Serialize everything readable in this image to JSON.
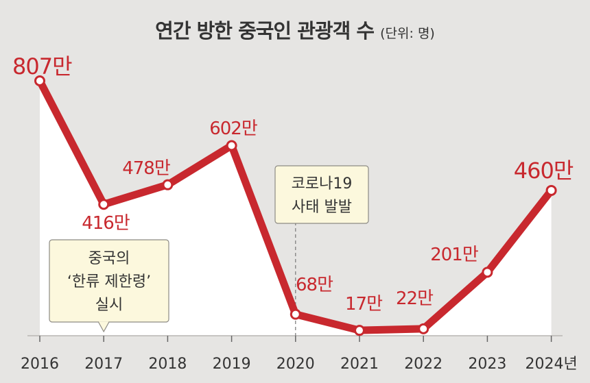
{
  "title": "연간 방한 중국인 관광객 수",
  "unit": "(단위: 명)",
  "chart_data": {
    "type": "line",
    "title": "연간 방한 중국인 관광객 수",
    "unit": "(단위: 명)",
    "xlabel": "",
    "ylabel": "",
    "categories": [
      "2016",
      "2017",
      "2018",
      "2019",
      "2020",
      "2021",
      "2022",
      "2023",
      "2024년"
    ],
    "values": [
      807,
      416,
      478,
      602,
      68,
      17,
      22,
      201,
      460
    ],
    "value_labels": [
      "807만",
      "416만",
      "478만",
      "602만",
      "68만",
      "17만",
      "22만",
      "201만",
      "460만"
    ],
    "value_unit": "만 명",
    "ylim": [
      0,
      850
    ],
    "grid": false,
    "line_color": "#c8282e",
    "fill_color": "#ffffff",
    "annotations": [
      {
        "category": "2017",
        "lines": [
          "중국의",
          "‘한류 제한령’",
          "실시"
        ]
      },
      {
        "category": "2020",
        "lines": [
          "코로나19",
          "사태 발발"
        ]
      }
    ]
  }
}
